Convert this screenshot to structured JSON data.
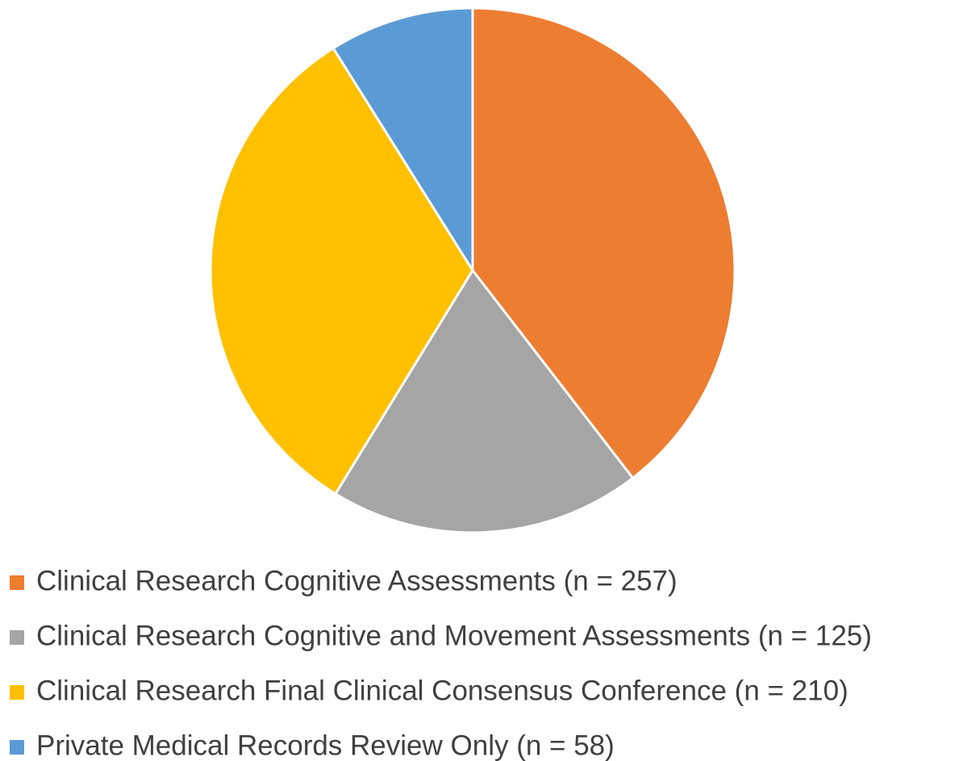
{
  "chart_data": {
    "type": "pie",
    "categories": [
      "Clinical Research Cognitive Assessments (n = 257)",
      "Clinical Research Cognitive and Movement Assessments (n = 125)",
      "Clinical Research Final Clinical Consensus Conference (n = 210)",
      "Private Medical Records Review Only (n = 58)"
    ],
    "values": [
      257,
      125,
      210,
      58
    ],
    "colors": [
      "#ED7D31",
      "#A5A5A5",
      "#FFC000",
      "#5B9BD5"
    ],
    "legend": "bottom"
  }
}
